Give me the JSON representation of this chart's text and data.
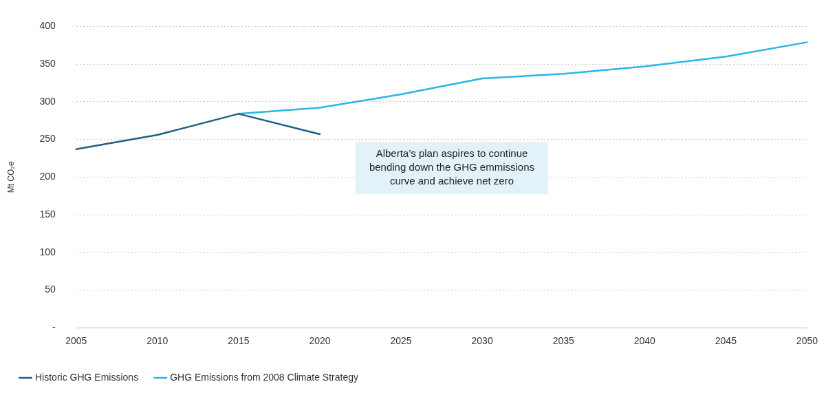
{
  "chart_data": {
    "type": "line",
    "ylabel": "Mt CO₂e",
    "categories": [
      "2005",
      "2010",
      "2015",
      "2020",
      "2025",
      "2030",
      "2035",
      "2040",
      "2045",
      "2050"
    ],
    "series": [
      {
        "name": "Historic GHG Emissions",
        "color": "#1f5f86",
        "values": [
          237,
          256,
          284,
          257,
          null,
          null,
          null,
          null,
          null,
          null
        ]
      },
      {
        "name": "GHG Emissions from 2008 Climate Strategy",
        "color": "#29b5e8",
        "values": [
          null,
          null,
          284,
          292,
          310,
          331,
          337,
          347,
          360,
          379
        ]
      }
    ],
    "ylim": [
      0,
      400
    ],
    "yticks": [
      {
        "value": 0,
        "label": "-"
      },
      50,
      100,
      150,
      200,
      250,
      300,
      350,
      400
    ],
    "grid": "y",
    "legend": "bottom left",
    "marker": "none",
    "line_style": "solid",
    "annotations": [
      "Alberta’s plan aspires to continue bending down the GHG emmissions curve and achieve net zero"
    ]
  }
}
